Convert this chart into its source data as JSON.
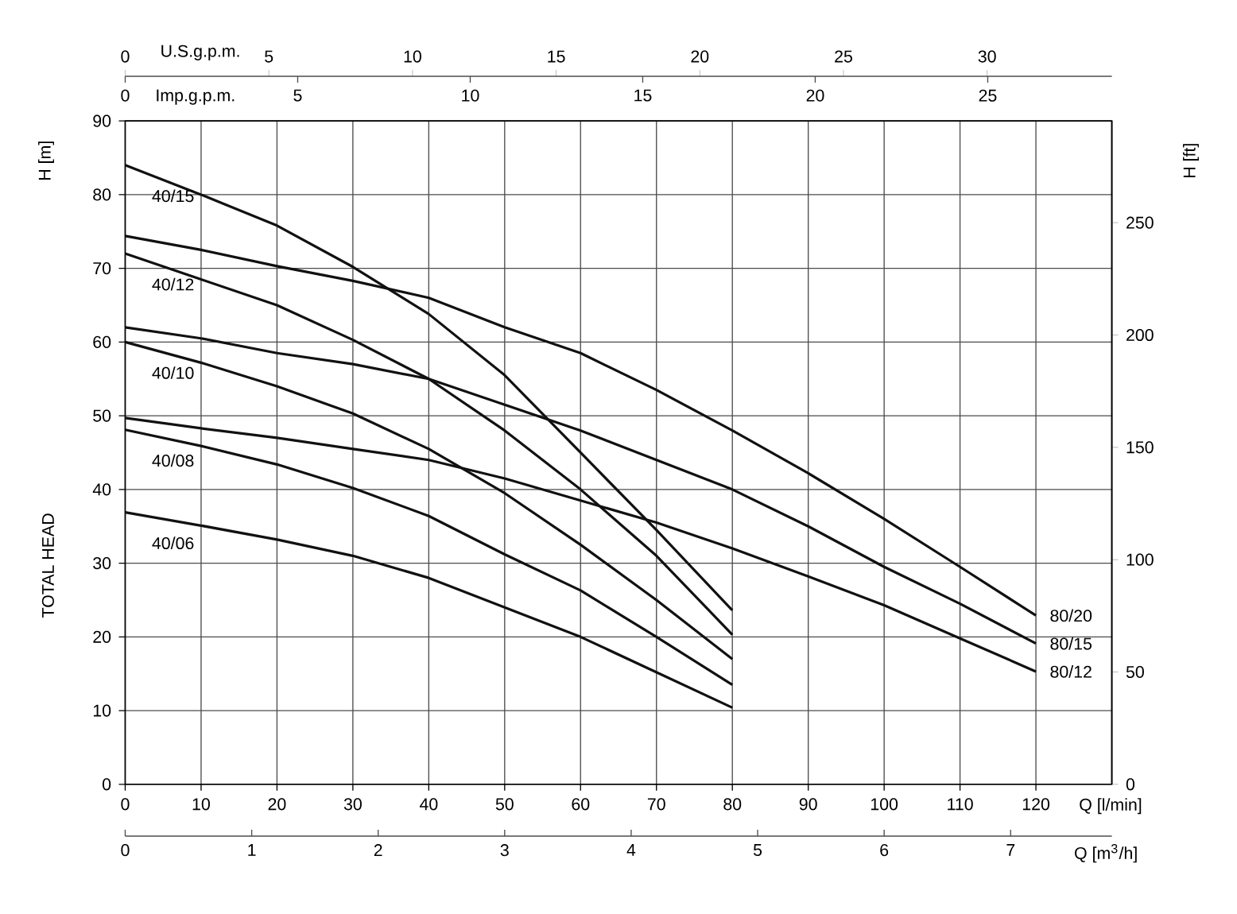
{
  "chart_data": {
    "type": "line",
    "xlabel": "Q [l/min]",
    "ylabel": "H [m]",
    "y2label": "H [ft]",
    "x2label": "U.S.g.p.m.",
    "annotations": [
      "TOTAL HEAD",
      "Imp.g.p.m.",
      "0",
      "5",
      "10",
      "15",
      "20",
      "25",
      "Q [m$^{3}$/h]",
      "0",
      "1",
      "2",
      "3",
      "4",
      "5",
      "6",
      "7"
    ],
    "xlim": [
      0,
      130
    ],
    "xticks": [
      0,
      10,
      20,
      30,
      40,
      50,
      60,
      70,
      80,
      90,
      100,
      110,
      120
    ],
    "ylim": [
      0,
      90
    ],
    "yticks": [
      0,
      10,
      20,
      30,
      40,
      50,
      60,
      70,
      80,
      90
    ],
    "y2lim": [
      0,
      295.3
    ],
    "y2ticks": [
      0,
      50,
      100,
      150,
      200,
      250
    ],
    "x2lim": [
      0,
      34.34
    ],
    "x2ticks": [
      0,
      5,
      10,
      15,
      20,
      25,
      30
    ],
    "grid": true,
    "series": [
      {
        "name": "40/15",
        "color": "#111111",
        "x": [
          0,
          10,
          20,
          30,
          40,
          50,
          60,
          70,
          80
        ],
        "values": [
          84,
          80,
          75.8,
          70.2,
          63.8,
          55.5,
          45,
          34.5,
          23.6
        ]
      },
      {
        "name": "40/12",
        "color": "#111111",
        "x": [
          0,
          10,
          20,
          30,
          40,
          50,
          60,
          70,
          80
        ],
        "values": [
          72,
          68.5,
          65,
          60.3,
          55,
          48,
          40,
          31,
          20.3
        ]
      },
      {
        "name": "40/10",
        "color": "#111111",
        "x": [
          0,
          10,
          20,
          30,
          40,
          50,
          60,
          70,
          80
        ],
        "values": [
          60,
          57.2,
          54,
          50.3,
          45.5,
          39.5,
          32.5,
          25,
          17
        ]
      },
      {
        "name": "40/08",
        "color": "#111111",
        "x": [
          0,
          10,
          20,
          30,
          40,
          50,
          60,
          70,
          80
        ],
        "values": [
          48.1,
          45.9,
          43.4,
          40.2,
          36.4,
          31.2,
          26.3,
          20,
          13.5
        ]
      },
      {
        "name": "40/06",
        "color": "#111111",
        "x": [
          0,
          10,
          20,
          30,
          40,
          50,
          60,
          70,
          80
        ],
        "values": [
          36.9,
          35.1,
          33.2,
          31,
          28,
          24,
          20,
          15.2,
          10.4
        ]
      },
      {
        "name": "80/20",
        "color": "#111111",
        "x": [
          0,
          10,
          20,
          30,
          40,
          50,
          60,
          70,
          80,
          90,
          100,
          110,
          120
        ],
        "values": [
          74.4,
          72.5,
          70.3,
          68.3,
          66,
          62,
          58.5,
          53.5,
          48,
          42.2,
          36,
          29.5,
          22.9
        ]
      },
      {
        "name": "80/15",
        "color": "#111111",
        "x": [
          0,
          10,
          20,
          30,
          40,
          50,
          60,
          70,
          80,
          90,
          100,
          110,
          120
        ],
        "values": [
          62,
          60.5,
          58.5,
          57,
          55,
          51.5,
          48,
          44,
          40,
          35,
          29.5,
          24.5,
          19.1
        ]
      },
      {
        "name": "80/12",
        "color": "#111111",
        "x": [
          0,
          10,
          20,
          30,
          40,
          50,
          60,
          70,
          80,
          90,
          100,
          110,
          120
        ],
        "values": [
          49.7,
          48.3,
          47,
          45.5,
          44,
          41.5,
          38.5,
          35.5,
          32,
          28.2,
          24.3,
          19.8,
          15.3
        ]
      }
    ]
  }
}
